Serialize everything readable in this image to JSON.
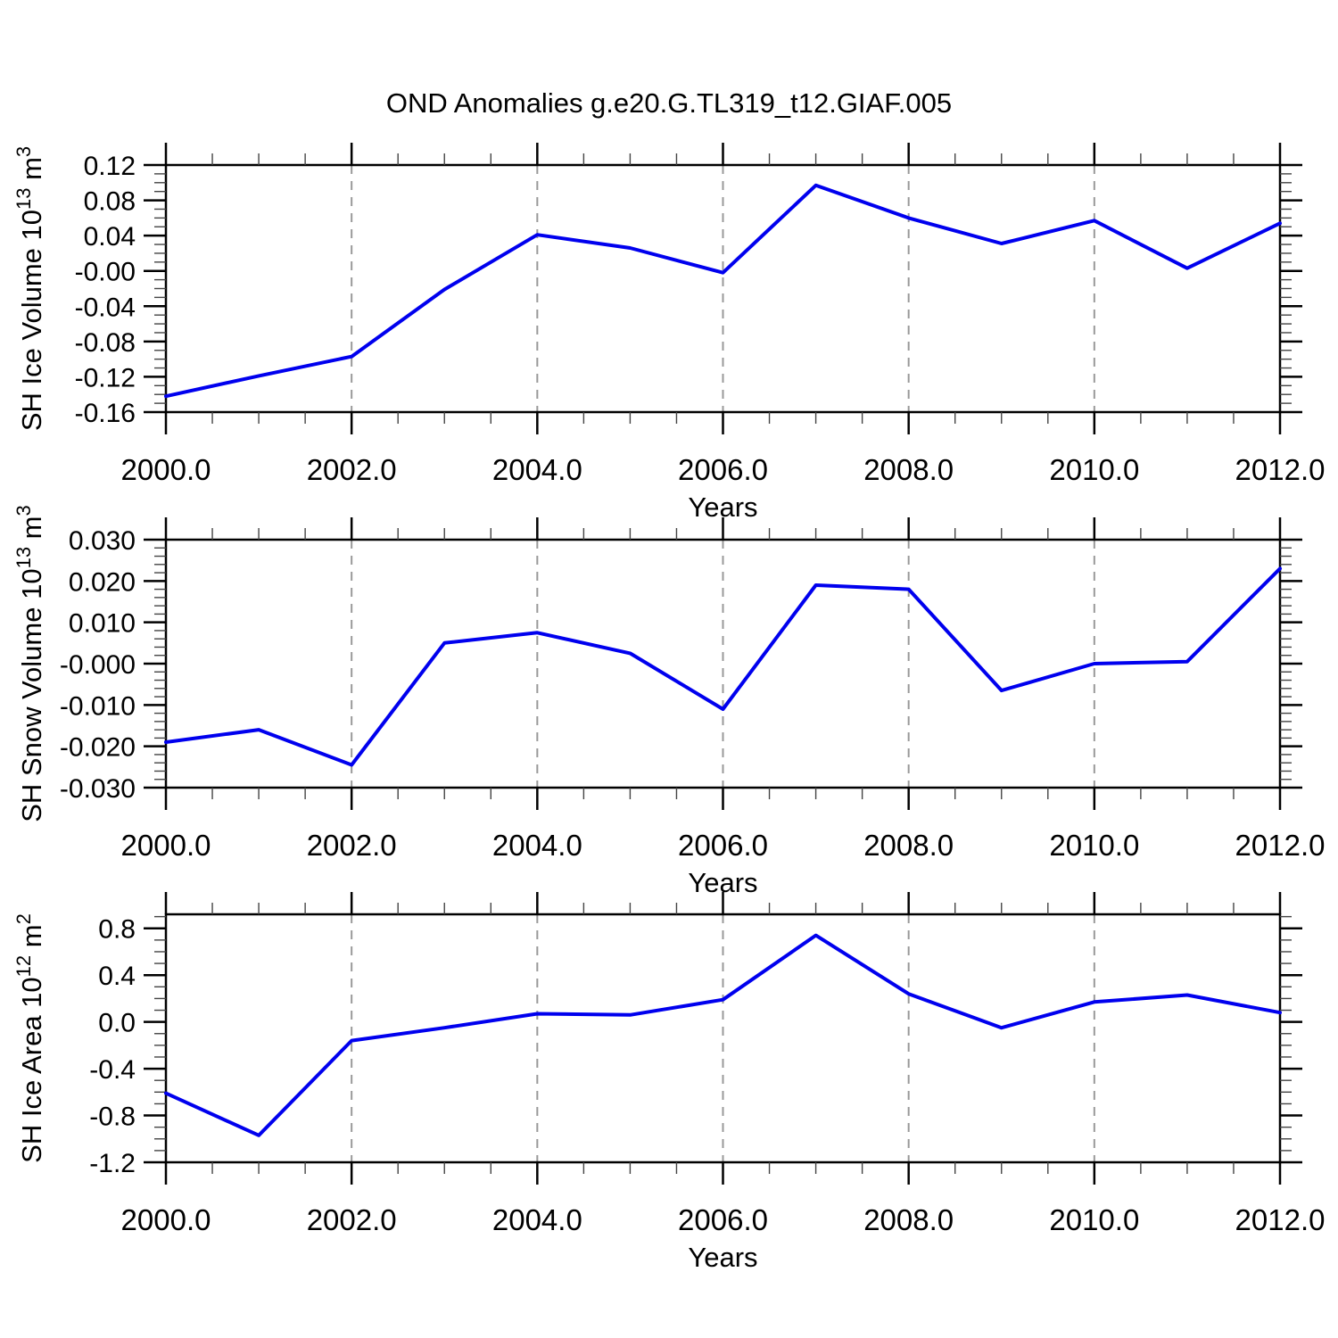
{
  "title": "OND Anomalies g.e20.G.TL319_t12.GIAF.005",
  "colors": {
    "line": "#0000ee",
    "grid": "#999999",
    "axis": "#000000",
    "minor_tick": "#444444",
    "background": "#ffffff"
  },
  "chart_data": [
    {
      "name": "sh-ice-volume",
      "type": "line",
      "xlabel": "Years",
      "ylabel_parts": [
        [
          "SH Ice Volume 10",
          false
        ],
        [
          "13",
          true
        ],
        [
          " m",
          false
        ],
        [
          "3",
          true
        ]
      ],
      "x": [
        2000,
        2001,
        2002,
        2003,
        2004,
        2005,
        2006,
        2007,
        2008,
        2009,
        2010,
        2011,
        2012
      ],
      "values": [
        -0.142,
        -0.119,
        -0.097,
        -0.021,
        0.041,
        0.026,
        -0.002,
        0.097,
        0.06,
        0.031,
        0.057,
        0.003,
        0.054
      ],
      "xlim": [
        2000,
        2012
      ],
      "x_major_step": 2,
      "x_minor_step": 0.5,
      "x_decimals": 1,
      "ylim": [
        -0.16,
        0.12
      ],
      "y_major_max": 0.12,
      "y_major_step": 0.04,
      "y_minor_step": 0.01,
      "y_decimals": 2,
      "grid_years": [
        2002,
        2004,
        2006,
        2008,
        2010
      ],
      "legend": "none",
      "grid": "vertical-dashed"
    },
    {
      "name": "sh-snow-volume",
      "type": "line",
      "xlabel": "Years",
      "ylabel_parts": [
        [
          "SH Snow Volume 10",
          false
        ],
        [
          "13",
          true
        ],
        [
          " m",
          false
        ],
        [
          "3",
          true
        ]
      ],
      "x": [
        2000,
        2001,
        2002,
        2003,
        2004,
        2005,
        2006,
        2007,
        2008,
        2009,
        2010,
        2011,
        2012
      ],
      "values": [
        -0.019,
        -0.016,
        -0.0245,
        0.005,
        0.0075,
        0.0025,
        -0.011,
        0.019,
        0.018,
        -0.0065,
        0.0,
        0.0005,
        0.023
      ],
      "xlim": [
        2000,
        2012
      ],
      "x_major_step": 2,
      "x_minor_step": 0.5,
      "x_decimals": 1,
      "ylim": [
        -0.03,
        0.03
      ],
      "y_major_max": 0.03,
      "y_major_step": 0.01,
      "y_minor_step": 0.002,
      "y_decimals": 3,
      "grid_years": [
        2002,
        2004,
        2006,
        2008,
        2010
      ],
      "legend": "none",
      "grid": "vertical-dashed"
    },
    {
      "name": "sh-ice-area",
      "type": "line",
      "xlabel": "Years",
      "ylabel_parts": [
        [
          "SH Ice Area 10",
          false
        ],
        [
          "12",
          true
        ],
        [
          " m",
          false
        ],
        [
          "2",
          true
        ]
      ],
      "x": [
        2000,
        2001,
        2002,
        2003,
        2004,
        2005,
        2006,
        2007,
        2008,
        2009,
        2010,
        2011,
        2012
      ],
      "values": [
        -0.61,
        -0.97,
        -0.16,
        -0.05,
        0.07,
        0.06,
        0.19,
        0.74,
        0.24,
        -0.05,
        0.17,
        0.23,
        0.08
      ],
      "xlim": [
        2000,
        2012
      ],
      "x_major_step": 2,
      "x_minor_step": 0.5,
      "x_decimals": 1,
      "ylim": [
        -1.2,
        0.92
      ],
      "y_major_max": 0.8,
      "y_major_step": 0.4,
      "y_minor_step": 0.1,
      "y_decimals": 1,
      "grid_years": [
        2002,
        2004,
        2006,
        2008,
        2010
      ],
      "legend": "none",
      "grid": "vertical-dashed"
    }
  ]
}
